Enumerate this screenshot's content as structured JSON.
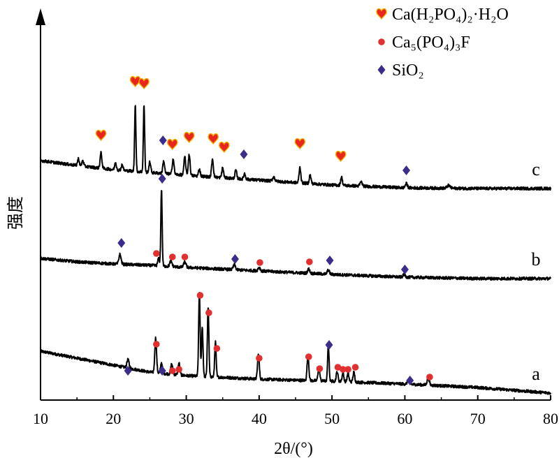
{
  "chart_data": {
    "type": "line",
    "xlabel": "2θ/(°)",
    "ylabel": "强度",
    "xlim": [
      10,
      80
    ],
    "xticks": [
      "10",
      "20",
      "30",
      "40",
      "50",
      "60",
      "70",
      "80"
    ],
    "legend": {
      "position": "top-right",
      "entries": [
        {
          "label": "Ca(H₂PO₄)₂·H₂O",
          "marker": "heart",
          "color": "#e8261e"
        },
        {
          "label": "Ca₅(PO₄)₃F",
          "marker": "circle",
          "color": "#e03030"
        },
        {
          "label": "SiO₂",
          "marker": "diamond",
          "color": "#3b2e8a"
        }
      ]
    },
    "series": [
      {
        "name": "a",
        "baseline": [
          [
            10,
            70
          ],
          [
            15,
            60
          ],
          [
            20,
            50
          ],
          [
            25,
            40
          ],
          [
            30,
            35
          ],
          [
            40,
            30
          ],
          [
            50,
            27
          ],
          [
            60,
            23
          ],
          [
            70,
            18
          ],
          [
            80,
            10
          ]
        ],
        "peaks": [
          {
            "x": 22.0,
            "h": 12,
            "w": 0.15
          },
          {
            "x": 25.8,
            "h": 50,
            "w": 0.12
          },
          {
            "x": 26.6,
            "h": 15,
            "w": 0.12
          },
          {
            "x": 28.0,
            "h": 15,
            "w": 0.12
          },
          {
            "x": 29.0,
            "h": 17,
            "w": 0.12
          },
          {
            "x": 31.8,
            "h": 120,
            "w": 0.1
          },
          {
            "x": 32.2,
            "h": 70,
            "w": 0.1
          },
          {
            "x": 33.0,
            "h": 100,
            "w": 0.1
          },
          {
            "x": 34.0,
            "h": 50,
            "w": 0.1
          },
          {
            "x": 39.9,
            "h": 35,
            "w": 0.12
          },
          {
            "x": 46.7,
            "h": 36,
            "w": 0.12
          },
          {
            "x": 48.2,
            "h": 20,
            "w": 0.12
          },
          {
            "x": 49.5,
            "h": 52,
            "w": 0.1
          },
          {
            "x": 50.7,
            "h": 14,
            "w": 0.12
          },
          {
            "x": 51.5,
            "h": 12,
            "w": 0.12
          },
          {
            "x": 52.2,
            "h": 12,
            "w": 0.12
          },
          {
            "x": 53.0,
            "h": 14,
            "w": 0.12
          },
          {
            "x": 60.5,
            "h": 6,
            "w": 0.15
          },
          {
            "x": 63.2,
            "h": 10,
            "w": 0.15
          }
        ],
        "markers": [
          {
            "x": 22.0,
            "y": 42,
            "type": "diamond"
          },
          {
            "x": 25.9,
            "y": 80,
            "type": "circle"
          },
          {
            "x": 26.7,
            "y": 42,
            "type": "diamond"
          },
          {
            "x": 28.1,
            "y": 42,
            "type": "circle"
          },
          {
            "x": 29.0,
            "y": 44,
            "type": "circle"
          },
          {
            "x": 31.9,
            "y": 150,
            "type": "circle"
          },
          {
            "x": 33.1,
            "y": 125,
            "type": "circle"
          },
          {
            "x": 34.2,
            "y": 74,
            "type": "circle"
          },
          {
            "x": 40.0,
            "y": 60,
            "type": "circle"
          },
          {
            "x": 46.8,
            "y": 62,
            "type": "circle"
          },
          {
            "x": 48.3,
            "y": 45,
            "type": "circle"
          },
          {
            "x": 49.6,
            "y": 79,
            "type": "diamond"
          },
          {
            "x": 50.8,
            "y": 47,
            "type": "circle"
          },
          {
            "x": 51.5,
            "y": 44,
            "type": "circle"
          },
          {
            "x": 52.2,
            "y": 44,
            "type": "circle"
          },
          {
            "x": 53.2,
            "y": 47,
            "type": "circle"
          },
          {
            "x": 60.7,
            "y": 28,
            "type": "diamond"
          },
          {
            "x": 63.4,
            "y": 33,
            "type": "circle"
          }
        ]
      },
      {
        "name": "b",
        "baseline": [
          [
            10,
            203
          ],
          [
            15,
            198
          ],
          [
            20,
            195
          ],
          [
            25,
            193
          ],
          [
            30,
            190
          ],
          [
            40,
            185
          ],
          [
            50,
            180
          ],
          [
            60,
            176
          ],
          [
            70,
            174
          ],
          [
            80,
            174
          ]
        ],
        "peaks": [
          {
            "x": 20.9,
            "h": 14,
            "w": 0.15
          },
          {
            "x": 26.6,
            "h": 110,
            "w": 0.09
          },
          {
            "x": 26.2,
            "h": 10,
            "w": 0.12
          },
          {
            "x": 27.9,
            "h": 8,
            "w": 0.15
          },
          {
            "x": 29.8,
            "h": 8,
            "w": 0.15
          },
          {
            "x": 36.6,
            "h": 7,
            "w": 0.15
          },
          {
            "x": 40.0,
            "h": 5,
            "w": 0.15
          },
          {
            "x": 46.8,
            "h": 6,
            "w": 0.15
          },
          {
            "x": 49.5,
            "h": 6,
            "w": 0.15
          },
          {
            "x": 59.9,
            "h": 4,
            "w": 0.15
          }
        ],
        "markers": [
          {
            "x": 21.1,
            "y": 225,
            "type": "diamond"
          },
          {
            "x": 25.9,
            "y": 210,
            "type": "circle"
          },
          {
            "x": 26.7,
            "y": 317,
            "type": "diamond"
          },
          {
            "x": 28.1,
            "y": 205,
            "type": "circle"
          },
          {
            "x": 29.8,
            "y": 205,
            "type": "circle"
          },
          {
            "x": 36.7,
            "y": 202,
            "type": "diamond"
          },
          {
            "x": 40.1,
            "y": 197,
            "type": "circle"
          },
          {
            "x": 46.9,
            "y": 198,
            "type": "circle"
          },
          {
            "x": 49.7,
            "y": 200,
            "type": "diamond"
          },
          {
            "x": 60.0,
            "y": 187,
            "type": "diamond"
          }
        ]
      },
      {
        "name": "c",
        "baseline": [
          [
            10,
            343
          ],
          [
            15,
            336
          ],
          [
            20,
            330
          ],
          [
            25,
            326
          ],
          [
            30,
            322
          ],
          [
            40,
            315
          ],
          [
            50,
            308
          ],
          [
            60,
            304
          ],
          [
            70,
            303
          ],
          [
            80,
            303
          ]
        ],
        "peaks": [
          {
            "x": 15.2,
            "h": 10,
            "w": 0.12
          },
          {
            "x": 15.8,
            "h": 8,
            "w": 0.12
          },
          {
            "x": 18.3,
            "h": 22,
            "w": 0.12
          },
          {
            "x": 20.3,
            "h": 10,
            "w": 0.12
          },
          {
            "x": 21.2,
            "h": 8,
            "w": 0.12
          },
          {
            "x": 23.0,
            "h": 96,
            "w": 0.09
          },
          {
            "x": 24.2,
            "h": 95,
            "w": 0.09
          },
          {
            "x": 25.0,
            "h": 15,
            "w": 0.12
          },
          {
            "x": 26.9,
            "h": 18,
            "w": 0.12
          },
          {
            "x": 28.2,
            "h": 22,
            "w": 0.12
          },
          {
            "x": 29.8,
            "h": 26,
            "w": 0.12
          },
          {
            "x": 30.4,
            "h": 30,
            "w": 0.12
          },
          {
            "x": 31.8,
            "h": 10,
            "w": 0.12
          },
          {
            "x": 33.6,
            "h": 26,
            "w": 0.12
          },
          {
            "x": 35.0,
            "h": 14,
            "w": 0.12
          },
          {
            "x": 36.8,
            "h": 12,
            "w": 0.12
          },
          {
            "x": 38.0,
            "h": 8,
            "w": 0.12
          },
          {
            "x": 42.0,
            "h": 6,
            "w": 0.15
          },
          {
            "x": 45.6,
            "h": 22,
            "w": 0.12
          },
          {
            "x": 47.0,
            "h": 12,
            "w": 0.12
          },
          {
            "x": 51.3,
            "h": 12,
            "w": 0.12
          },
          {
            "x": 54.0,
            "h": 6,
            "w": 0.15
          },
          {
            "x": 60.2,
            "h": 6,
            "w": 0.15
          },
          {
            "x": 66.0,
            "h": 4,
            "w": 0.2
          }
        ],
        "markers": [
          {
            "x": 18.3,
            "y": 379,
            "type": "heart"
          },
          {
            "x": 23.0,
            "y": 456,
            "type": "heart"
          },
          {
            "x": 24.2,
            "y": 453,
            "type": "heart"
          },
          {
            "x": 26.8,
            "y": 372,
            "type": "diamond"
          },
          {
            "x": 28.1,
            "y": 366,
            "type": "heart"
          },
          {
            "x": 30.4,
            "y": 376,
            "type": "heart"
          },
          {
            "x": 33.7,
            "y": 374,
            "type": "heart"
          },
          {
            "x": 35.2,
            "y": 362,
            "type": "heart"
          },
          {
            "x": 37.9,
            "y": 352,
            "type": "diamond"
          },
          {
            "x": 45.6,
            "y": 367,
            "type": "heart"
          },
          {
            "x": 51.2,
            "y": 349,
            "type": "heart"
          },
          {
            "x": 60.2,
            "y": 329,
            "type": "diamond"
          }
        ]
      }
    ]
  }
}
